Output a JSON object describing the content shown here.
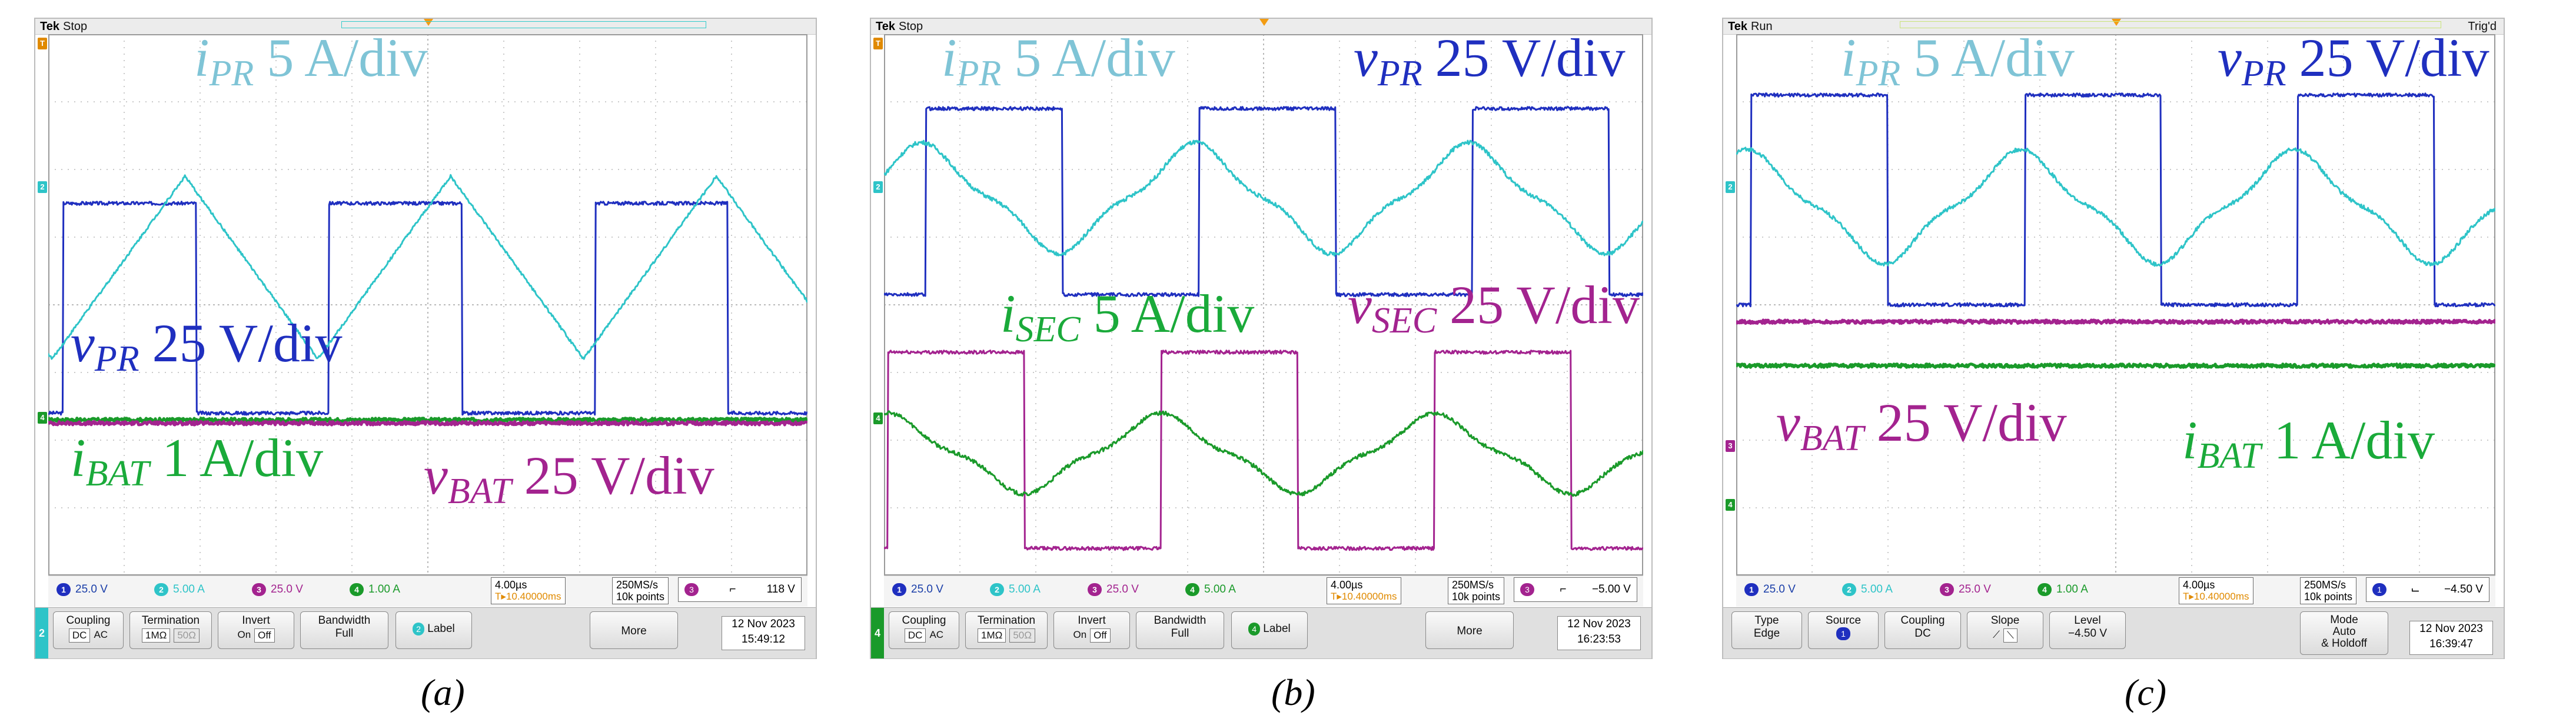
{
  "figure": {
    "captions": [
      "(a)",
      "(b)",
      "(c)"
    ],
    "colors": {
      "ch1": "#1f2fbf",
      "ch2": "#2ec4c8",
      "ch3": "#a3238f",
      "ch4": "#1a9a2a",
      "label_ipr": "#7fc4d6",
      "label_vpr": "#1f2fbf",
      "label_isec": "#1aaa3a",
      "label_vsec": "#a3238f",
      "label_ibat": "#1aaa3a",
      "label_vbat": "#a3238f",
      "orange": "#e08a00"
    }
  },
  "chart_data": [
    {
      "type": "line",
      "title": "(a)",
      "scope_state": "Stop",
      "time_per_div": "4.00µs",
      "trigger_pos": "10.40000ms",
      "sample_rate": "250MS/s",
      "record_length": "10k points",
      "trigger_level": "118 V",
      "date": "12 Nov 2023",
      "time": "15:49:12",
      "divisions": {
        "x": 10,
        "y": 8
      },
      "labels": [
        {
          "sym": "i",
          "sub": "PR",
          "unit": "5 A/div",
          "color": "label_ipr"
        },
        {
          "sym": "v",
          "sub": "PR",
          "unit": "25 V/div",
          "color": "label_vpr"
        },
        {
          "sym": "i",
          "sub": "BAT",
          "unit": "1 A/div",
          "color": "label_ibat"
        },
        {
          "sym": "v",
          "sub": "BAT",
          "unit": "25 V/div",
          "color": "label_vbat"
        }
      ],
      "channel_readouts": [
        {
          "ch": "1",
          "value": "25.0 V"
        },
        {
          "ch": "2",
          "value": "5.00 A"
        },
        {
          "ch": "3",
          "value": "25.0 V"
        },
        {
          "ch": "4",
          "value": "1.00 A"
        }
      ],
      "series": [
        {
          "name": "vPR",
          "channel": "1",
          "shape": "square",
          "high_div": 1.5,
          "low_div": -1.6,
          "period_div": 3.5,
          "phase_div": 0.2
        },
        {
          "name": "iPR",
          "channel": "2",
          "shape": "triangle",
          "high_div": 1.9,
          "low_div": -0.8,
          "period_div": 3.5,
          "phase_div": 0.05
        },
        {
          "name": "iBAT",
          "channel": "4",
          "shape": "flat",
          "level_div": -1.7
        },
        {
          "name": "vBAT",
          "channel": "3",
          "shape": "flat",
          "level_div": -1.75
        }
      ],
      "menu": {
        "tab": "2",
        "coupling": {
          "label": "Coupling",
          "opts": [
            "DC",
            "AC"
          ]
        },
        "termination": {
          "label": "Termination",
          "opts": [
            "1MΩ",
            "50Ω"
          ]
        },
        "invert": {
          "label": "Invert",
          "opts": [
            "On",
            "Off"
          ]
        },
        "bandwidth": {
          "label": "Bandwidth",
          "value": "Full"
        },
        "label_btn": "Label",
        "more": "More"
      }
    },
    {
      "type": "line",
      "title": "(b)",
      "scope_state": "Stop",
      "time_per_div": "4.00µs",
      "trigger_pos": "10.40000ms",
      "sample_rate": "250MS/s",
      "record_length": "10k points",
      "trigger_level": "−5.00 V",
      "date": "12 Nov 2023",
      "time": "16:23:53",
      "divisions": {
        "x": 10,
        "y": 8
      },
      "labels": [
        {
          "sym": "i",
          "sub": "PR",
          "unit": "5 A/div",
          "color": "label_ipr"
        },
        {
          "sym": "v",
          "sub": "PR",
          "unit": "25 V/div",
          "color": "label_vpr"
        },
        {
          "sym": "i",
          "sub": "SEC",
          "unit": "5 A/div",
          "color": "label_isec"
        },
        {
          "sym": "v",
          "sub": "SEC",
          "unit": "25 V/div",
          "color": "label_vsec"
        }
      ],
      "channel_readouts": [
        {
          "ch": "1",
          "value": "25.0 V"
        },
        {
          "ch": "2",
          "value": "5.00 A"
        },
        {
          "ch": "3",
          "value": "25.0 V"
        },
        {
          "ch": "4",
          "value": "5.00 A"
        }
      ],
      "series": [
        {
          "name": "vPR",
          "channel": "1",
          "shape": "square",
          "high_div": 2.9,
          "low_div": 0.15,
          "period_div": 3.6,
          "phase_div": 0.55
        },
        {
          "name": "iPR",
          "channel": "2",
          "shape": "sine2",
          "high_div": 2.4,
          "low_div": 0.75,
          "period_div": 3.6,
          "phase_div": 0.5
        },
        {
          "name": "vSEC",
          "channel": "3",
          "shape": "square",
          "high_div": -0.7,
          "low_div": -3.6,
          "period_div": 3.6,
          "phase_div": 0.05
        },
        {
          "name": "iSEC",
          "channel": "4",
          "shape": "sine2",
          "high_div": -1.6,
          "low_div": -2.8,
          "period_div": 3.6,
          "phase_div": 0.05
        }
      ],
      "menu": {
        "tab": "4",
        "coupling": {
          "label": "Coupling",
          "opts": [
            "DC",
            "AC"
          ]
        },
        "termination": {
          "label": "Termination",
          "opts": [
            "1MΩ",
            "50Ω"
          ]
        },
        "invert": {
          "label": "Invert",
          "opts": [
            "On",
            "Off"
          ]
        },
        "bandwidth": {
          "label": "Bandwidth",
          "value": "Full"
        },
        "label_btn": "Label",
        "more": "More"
      }
    },
    {
      "type": "line",
      "title": "(c)",
      "scope_state": "Run",
      "trig_status": "Trig'd",
      "time_per_div": "4.00µs",
      "trigger_pos": "10.40000ms",
      "sample_rate": "250MS/s",
      "record_length": "10k points",
      "trigger_level": "−4.50 V",
      "date": "12 Nov 2023",
      "time": "16:39:47",
      "divisions": {
        "x": 10,
        "y": 8
      },
      "labels": [
        {
          "sym": "i",
          "sub": "PR",
          "unit": "5 A/div",
          "color": "label_ipr"
        },
        {
          "sym": "v",
          "sub": "PR",
          "unit": "25 V/div",
          "color": "label_vpr"
        },
        {
          "sym": "v",
          "sub": "BAT",
          "unit": "25 V/div",
          "color": "label_vbat"
        },
        {
          "sym": "i",
          "sub": "BAT",
          "unit": "1 A/div",
          "color": "label_ibat"
        }
      ],
      "channel_readouts": [
        {
          "ch": "1",
          "value": "25.0 V"
        },
        {
          "ch": "2",
          "value": "5.00 A"
        },
        {
          "ch": "3",
          "value": "25.0 V"
        },
        {
          "ch": "4",
          "value": "1.00 A"
        }
      ],
      "series": [
        {
          "name": "vPR",
          "channel": "1",
          "shape": "square",
          "high_div": 3.1,
          "low_div": 0.0,
          "period_div": 3.6,
          "phase_div": 0.2
        },
        {
          "name": "iPR",
          "channel": "2",
          "shape": "sine2",
          "high_div": 2.3,
          "low_div": 0.6,
          "period_div": 3.6,
          "phase_div": 0.15
        },
        {
          "name": "vBAT",
          "channel": "3",
          "shape": "flat",
          "level_div": -0.25
        },
        {
          "name": "iBAT",
          "channel": "4",
          "shape": "flat",
          "level_div": -0.9
        }
      ],
      "menu": {
        "type_btn": {
          "label": "Type",
          "value": "Edge"
        },
        "source_btn": {
          "label": "Source",
          "value": "1"
        },
        "coupling_btn": {
          "label": "Coupling",
          "value": "DC"
        },
        "slope_btn": {
          "label": "Slope"
        },
        "level_btn": {
          "label": "Level",
          "value": "−4.50 V"
        },
        "mode_btn": {
          "label": "Mode",
          "value": "Auto",
          "value2": "& Holdoff"
        }
      }
    }
  ]
}
